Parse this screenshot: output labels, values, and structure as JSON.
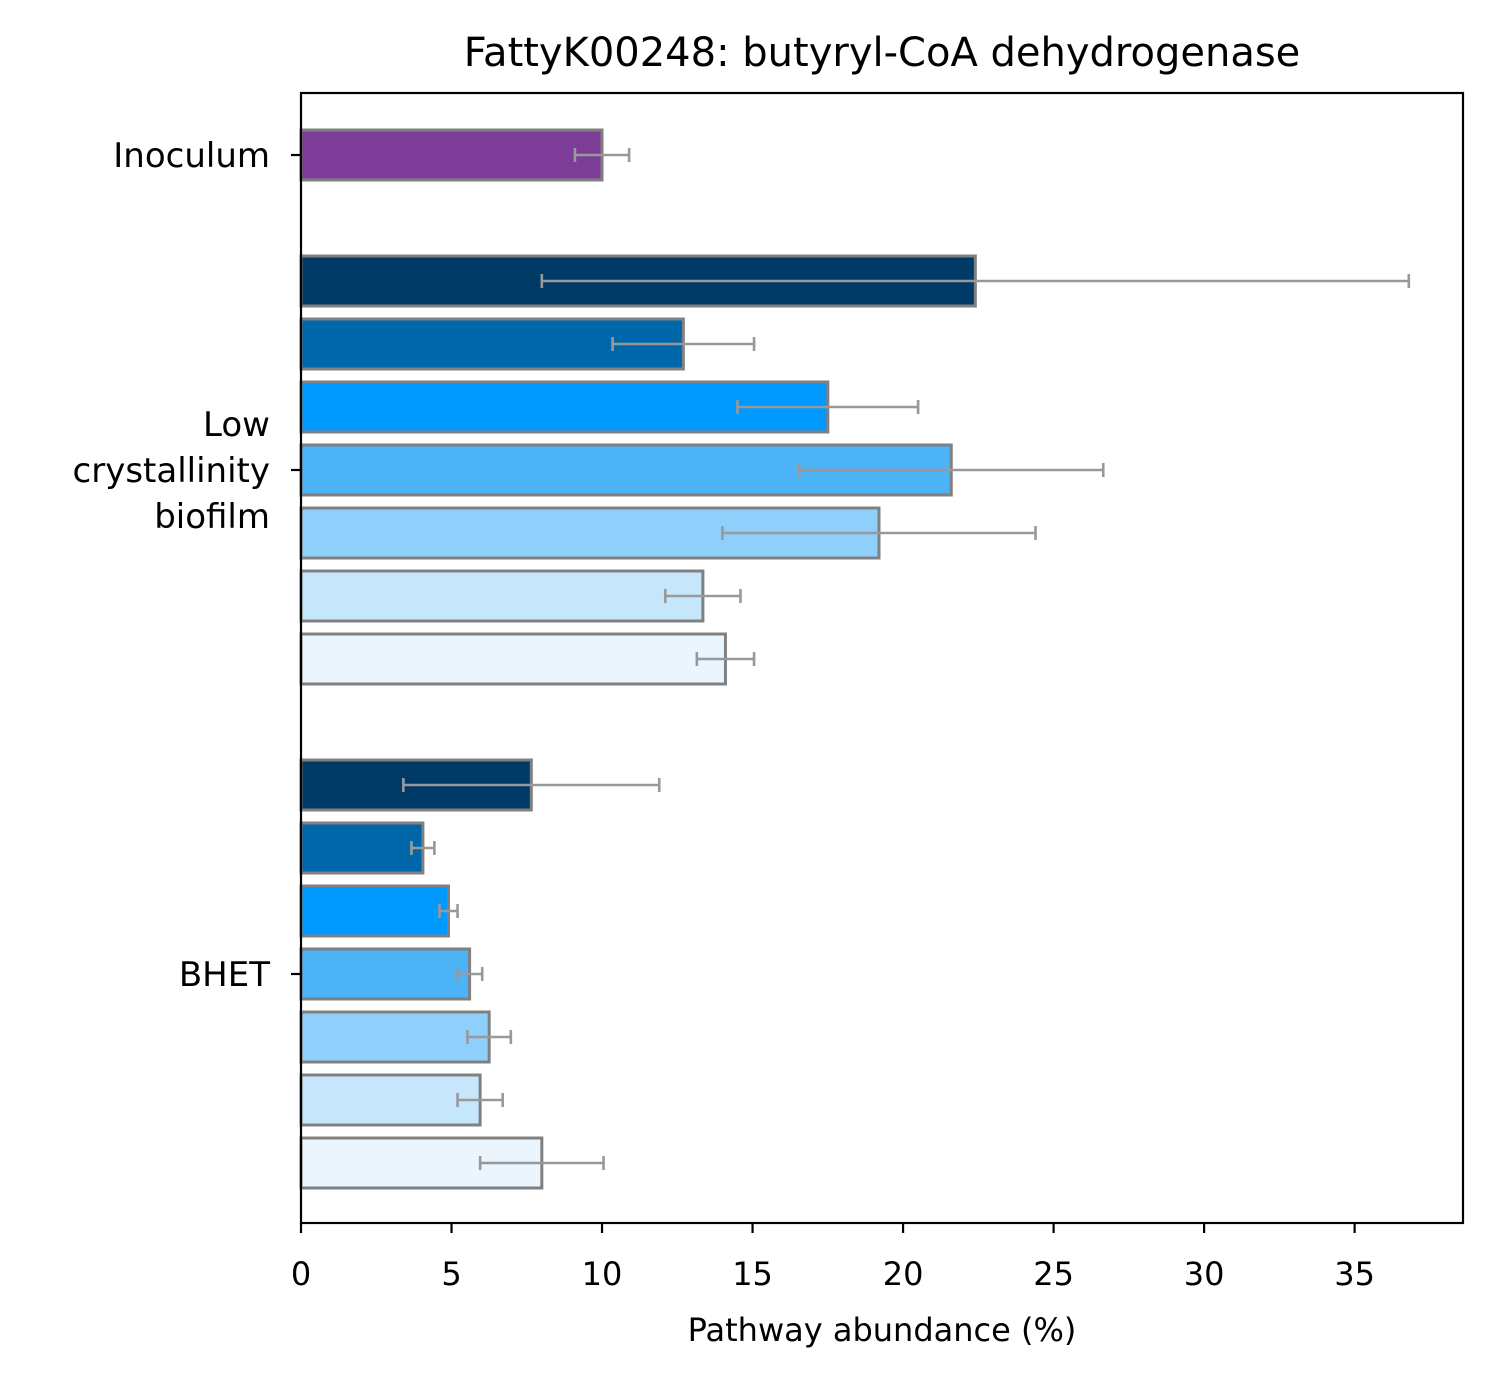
{
  "chart_data": {
    "type": "bar",
    "orientation": "horizontal",
    "title": "FattyK00248: butyryl-CoA dehydrogenase",
    "xlabel": "Pathway abundance (%)",
    "ylabel": "",
    "xlim": [
      0,
      38.6
    ],
    "xticks": [
      0,
      5,
      10,
      15,
      20,
      25,
      30,
      35
    ],
    "grid": false,
    "groups": [
      {
        "label": "Inoculum",
        "bars": [
          {
            "value": 10.0,
            "error": 0.9,
            "color": "#7d3c98"
          }
        ]
      },
      {
        "label": "Low\ncrystallinity\nbiofilm",
        "bars": [
          {
            "value": 22.4,
            "error": 14.4,
            "color": "#003a66"
          },
          {
            "value": 12.7,
            "error": 2.35,
            "color": "#0066aa"
          },
          {
            "value": 17.5,
            "error": 3.0,
            "color": "#0099ff"
          },
          {
            "value": 21.6,
            "error": 5.05,
            "color": "#4db3f7"
          },
          {
            "value": 19.2,
            "error": 5.2,
            "color": "#8ecffb"
          },
          {
            "value": 13.35,
            "error": 1.25,
            "color": "#c6e6fc"
          },
          {
            "value": 14.1,
            "error": 0.95,
            "color": "#eaf5fe"
          }
        ]
      },
      {
        "label": "BHET",
        "bars": [
          {
            "value": 7.65,
            "error": 4.25,
            "color": "#003a66"
          },
          {
            "value": 4.05,
            "error": 0.38,
            "color": "#0066aa"
          },
          {
            "value": 4.9,
            "error": 0.3,
            "color": "#0099ff"
          },
          {
            "value": 5.6,
            "error": 0.42,
            "color": "#4db3f7"
          },
          {
            "value": 6.25,
            "error": 0.72,
            "color": "#8ecffb"
          },
          {
            "value": 5.95,
            "error": 0.75,
            "color": "#c6e6fc"
          },
          {
            "value": 8.0,
            "error": 2.05,
            "color": "#eaf5fe"
          }
        ]
      }
    ],
    "bar_edge_color": "#808080",
    "error_color": "#999999"
  }
}
